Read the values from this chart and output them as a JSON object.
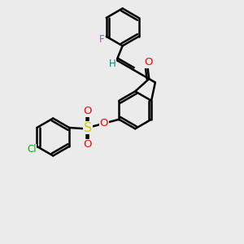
{
  "bg_color": "#ebebeb",
  "bond_color": "#000000",
  "bond_width": 1.8,
  "atom_colors": {
    "O": "#ff0000",
    "S": "#cccc00",
    "Cl": "#00bb00",
    "F": "#cc44cc",
    "H": "#008888",
    "C": "#000000"
  },
  "font_size": 8.5,
  "figsize": [
    3.0,
    3.0
  ],
  "dpi": 100
}
